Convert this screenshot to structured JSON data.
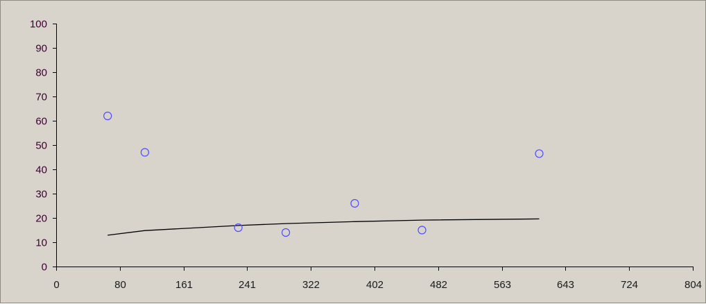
{
  "chart_data": {
    "type": "scatter",
    "title": "",
    "xlabel": "",
    "ylabel": "",
    "xlim": [
      0,
      804
    ],
    "ylim": [
      0,
      100
    ],
    "x_ticks": [
      "0",
      "80",
      "161",
      "241",
      "322",
      "402",
      "482",
      "563",
      "643",
      "724",
      "804"
    ],
    "y_ticks": [
      "0",
      "10",
      "20",
      "30",
      "40",
      "50",
      "60",
      "70",
      "80",
      "90",
      "100"
    ],
    "grid": false,
    "legend": "none",
    "series": [
      {
        "points": [
          {
            "x": 65,
            "y": 62
          },
          {
            "x": 112,
            "y": 47
          },
          {
            "x": 230,
            "y": 16
          },
          {
            "x": 290,
            "y": 14
          },
          {
            "x": 377,
            "y": 26
          },
          {
            "x": 462,
            "y": 15
          },
          {
            "x": 610,
            "y": 46.5
          }
        ],
        "marker": "circle",
        "color": "#4d4dff"
      }
    ],
    "trendline": {
      "type": "logarithmic",
      "color": "#000000",
      "points": [
        {
          "x": 65,
          "y": 12.9
        },
        {
          "x": 112,
          "y": 14.8
        },
        {
          "x": 230,
          "y": 16.9
        },
        {
          "x": 290,
          "y": 17.7
        },
        {
          "x": 377,
          "y": 18.5
        },
        {
          "x": 462,
          "y": 19.1
        },
        {
          "x": 610,
          "y": 19.6
        }
      ]
    }
  }
}
